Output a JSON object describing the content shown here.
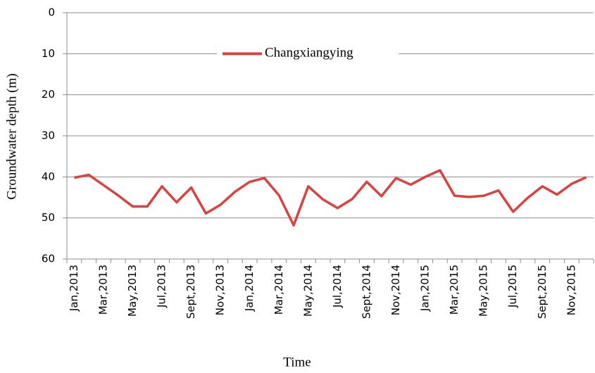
{
  "chart_data": {
    "type": "line",
    "xlabel": "Time",
    "ylabel": "Groundwater depth (m)",
    "categories": [
      "Jan,2013",
      null,
      "Mar,2013",
      null,
      "May,2013",
      null,
      "Jul,2013",
      null,
      "Sept,2013",
      null,
      "Nov,2013",
      null,
      "Jan,2014",
      null,
      "Mar,2014",
      null,
      "May,2014",
      null,
      "Jul,2014",
      null,
      "Sept,2014",
      null,
      "Nov,2014",
      null,
      "Jan,2015",
      null,
      "Mar,2015",
      null,
      "May,2015",
      null,
      "Jul,2015",
      null,
      "Sept,2015",
      null,
      "Nov,2015",
      null
    ],
    "series": [
      {
        "name": "Changxiangying",
        "color": "#d9423f",
        "values": [
          40.2,
          39.5,
          42,
          44.5,
          47.2,
          47.2,
          42.3,
          46.2,
          42.6,
          48.9,
          46.8,
          43.6,
          41.2,
          40.3,
          44.5,
          51.8,
          42.3,
          45.5,
          47.6,
          45.4,
          41.2,
          44.7,
          40.3,
          41.9,
          40,
          38.4,
          44.6,
          44.9,
          44.6,
          43.3,
          48.5,
          45.1,
          42.3,
          44.3,
          41.7,
          40.1
        ]
      }
    ],
    "ylim": [
      0,
      60
    ],
    "yticks": [
      0,
      10,
      20,
      30,
      40,
      50,
      60
    ],
    "y_inverted": true,
    "grid": true
  }
}
